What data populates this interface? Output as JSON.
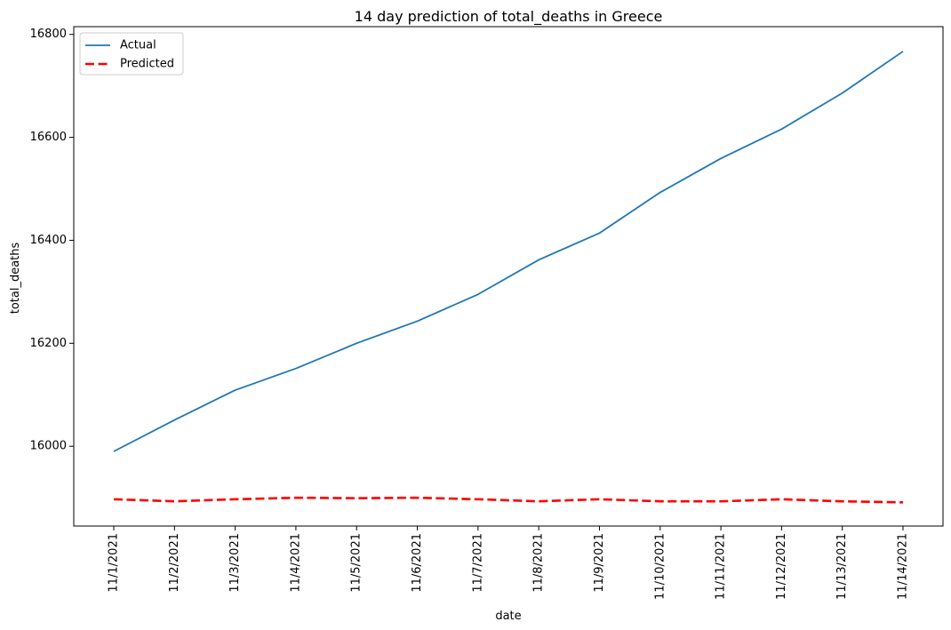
{
  "chart_data": {
    "type": "line",
    "title": "14 day prediction of total_deaths in Greece",
    "xlabel": "date",
    "ylabel": "total_deaths",
    "categories": [
      "11/1/2021",
      "11/2/2021",
      "11/3/2021",
      "11/4/2021",
      "11/5/2021",
      "11/6/2021",
      "11/7/2021",
      "11/8/2021",
      "11/9/2021",
      "11/10/2021",
      "11/11/2021",
      "11/12/2021",
      "11/13/2021",
      "11/14/2021"
    ],
    "ylim": [
      15845,
      16815
    ],
    "yticks": [
      16000,
      16200,
      16400,
      16600,
      16800
    ],
    "grid": false,
    "legend_position": "upper left",
    "series": [
      {
        "name": "Actual",
        "color": "#1f77b4",
        "style": "solid",
        "values": [
          15990,
          16051,
          16109,
          16151,
          16200,
          16243,
          16295,
          16362,
          16414,
          16493,
          16559,
          16616,
          16686,
          16767
        ]
      },
      {
        "name": "Predicted",
        "color": "#ff0000",
        "style": "dashed",
        "values": [
          15897,
          15893,
          15897,
          15900,
          15899,
          15900,
          15897,
          15893,
          15897,
          15893,
          15893,
          15897,
          15893,
          15891
        ]
      }
    ]
  }
}
